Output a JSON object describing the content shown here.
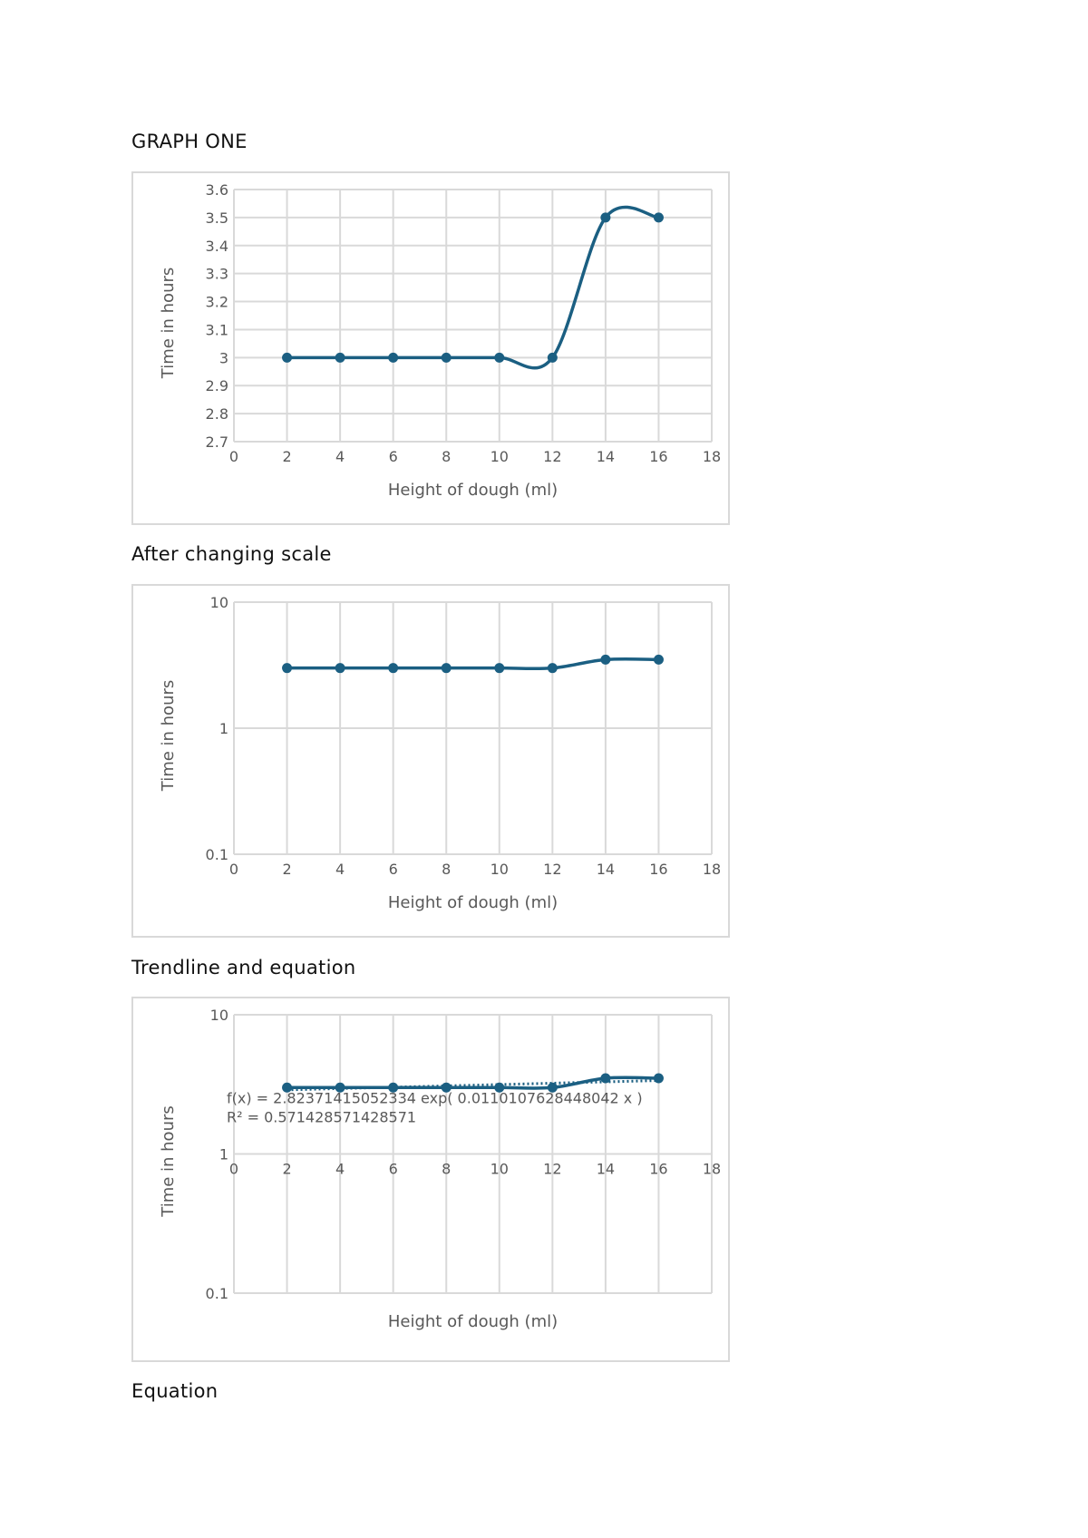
{
  "headings": {
    "graph_one": "GRAPH ONE",
    "after_scale": "After changing scale",
    "trendline": "Trendline and equation",
    "equation": "Equation"
  },
  "colors": {
    "series": "#1b5f82",
    "grid": "#d9d9d9",
    "text": "#595959",
    "border": "#d9d9d9"
  },
  "chart_data": [
    {
      "type": "line",
      "smooth": true,
      "xlabel": "Height of dough (ml)",
      "ylabel": "Time in hours",
      "xlim": [
        0,
        18
      ],
      "ylim": [
        2.7,
        3.6
      ],
      "xticks": [
        0,
        2,
        4,
        6,
        8,
        10,
        12,
        14,
        16,
        18
      ],
      "yticks": [
        2.7,
        2.8,
        2.9,
        3,
        3.1,
        3.2,
        3.3,
        3.4,
        3.5,
        3.6
      ],
      "ytick_labels": [
        "2.7",
        "2.8",
        "2.9",
        "3",
        "3.1",
        "3.2",
        "3.3",
        "3.4",
        "3.5",
        "3.6"
      ],
      "yscale": "linear",
      "grid": true,
      "x": [
        2,
        4,
        6,
        8,
        10,
        12,
        14,
        16
      ],
      "y": [
        3,
        3,
        3,
        3,
        3,
        3,
        3.5,
        3.5
      ]
    },
    {
      "type": "line",
      "smooth": true,
      "xlabel": "Height of dough (ml)",
      "ylabel": "Time in hours",
      "xlim": [
        0,
        18
      ],
      "ylim": [
        0.1,
        10
      ],
      "xticks": [
        0,
        2,
        4,
        6,
        8,
        10,
        12,
        14,
        16,
        18
      ],
      "yticks": [
        0.1,
        1,
        10
      ],
      "ytick_labels": [
        "0.1",
        "1",
        "10"
      ],
      "yscale": "log",
      "grid": true,
      "x": [
        2,
        4,
        6,
        8,
        10,
        12,
        14,
        16
      ],
      "y": [
        3,
        3,
        3,
        3,
        3,
        3,
        3.5,
        3.5
      ]
    },
    {
      "type": "line",
      "smooth": true,
      "xlabel": "Height of dough (ml)",
      "ylabel": "Time in hours",
      "xlim": [
        0,
        18
      ],
      "ylim": [
        0.1,
        10
      ],
      "xticks": [
        0,
        2,
        4,
        6,
        8,
        10,
        12,
        14,
        16,
        18
      ],
      "yticks": [
        0.1,
        1,
        10
      ],
      "ytick_labels": [
        "0.1",
        "1",
        "10"
      ],
      "yscale": "log",
      "grid": true,
      "x_axis_crosses_at": 1,
      "x": [
        2,
        4,
        6,
        8,
        10,
        12,
        14,
        16
      ],
      "y": [
        3,
        3,
        3,
        3,
        3,
        3,
        3.5,
        3.5
      ],
      "trendline": {
        "type": "exponential",
        "a": 2.82371415052334,
        "b": 0.0110107628448042,
        "equation": "f(x) = 2.82371415052334 exp( 0.0110107628448042 x )",
        "r_squared": "R² = 0.571428571428571"
      }
    }
  ]
}
